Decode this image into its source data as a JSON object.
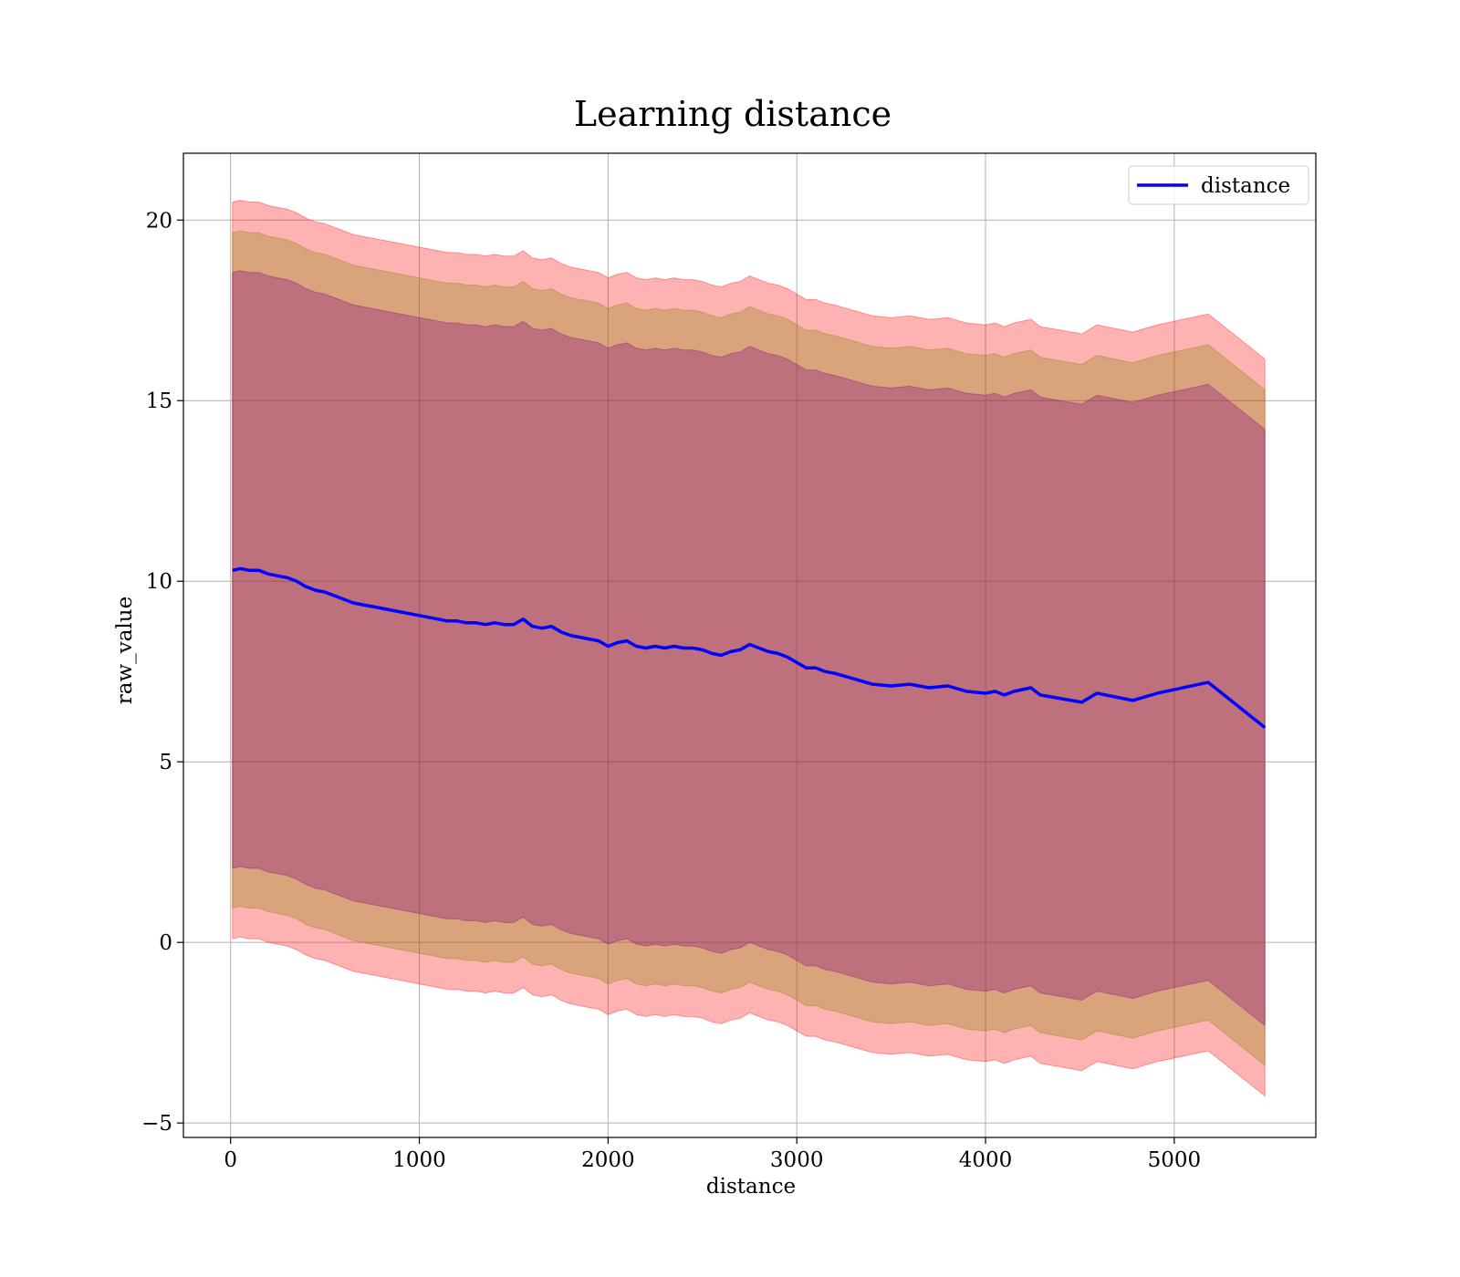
{
  "chart_data": {
    "type": "area",
    "title": "Learning distance",
    "xlabel": "distance",
    "ylabel": "raw_value",
    "xlim": [
      -250,
      5750
    ],
    "ylim": [
      -5.4,
      21.85
    ],
    "xticks": [
      0,
      1000,
      2000,
      3000,
      4000,
      5000
    ],
    "yticks": [
      -5,
      0,
      5,
      10,
      15,
      20
    ],
    "xtick_labels": [
      "0",
      "1000",
      "2000",
      "3000",
      "4000",
      "5000"
    ],
    "ytick_labels": [
      "−5",
      "0",
      "5",
      "10",
      "15",
      "20"
    ],
    "grid": true,
    "legend_position": "top-right",
    "series": [
      {
        "name": "distance",
        "kind": "line",
        "color": "#0000ff",
        "x": [
          10,
          50,
          100,
          150,
          200,
          250,
          300,
          350,
          400,
          450,
          500,
          550,
          600,
          650,
          700,
          750,
          800,
          850,
          900,
          950,
          1000,
          1050,
          1100,
          1150,
          1200,
          1250,
          1300,
          1350,
          1400,
          1450,
          1500,
          1550,
          1600,
          1650,
          1700,
          1750,
          1800,
          1850,
          1900,
          1950,
          2000,
          2050,
          2100,
          2150,
          2200,
          2250,
          2300,
          2350,
          2400,
          2450,
          2500,
          2550,
          2600,
          2650,
          2700,
          2750,
          2800,
          2850,
          2900,
          2950,
          3000,
          3050,
          3100,
          3150,
          3200,
          3300,
          3400,
          3500,
          3600,
          3700,
          3800,
          3900,
          4000,
          4050,
          4100,
          4150,
          4240,
          4290,
          4510,
          4590,
          4780,
          4910,
          5180,
          5480
        ],
        "y": [
          10.3,
          10.35,
          10.3,
          10.3,
          10.2,
          10.15,
          10.1,
          10.0,
          9.85,
          9.75,
          9.7,
          9.6,
          9.5,
          9.4,
          9.35,
          9.3,
          9.25,
          9.2,
          9.15,
          9.1,
          9.05,
          9.0,
          8.95,
          8.9,
          8.9,
          8.85,
          8.85,
          8.8,
          8.85,
          8.8,
          8.8,
          8.95,
          8.75,
          8.7,
          8.75,
          8.6,
          8.5,
          8.45,
          8.4,
          8.35,
          8.2,
          8.3,
          8.35,
          8.2,
          8.15,
          8.2,
          8.15,
          8.2,
          8.15,
          8.15,
          8.1,
          8.0,
          7.95,
          8.05,
          8.1,
          8.25,
          8.15,
          8.05,
          8.0,
          7.9,
          7.75,
          7.6,
          7.6,
          7.5,
          7.45,
          7.3,
          7.15,
          7.1,
          7.15,
          7.05,
          7.1,
          6.95,
          6.9,
          6.95,
          6.85,
          6.95,
          7.05,
          6.85,
          6.65,
          6.9,
          6.7,
          6.9,
          7.2,
          5.95
        ]
      },
      {
        "name": "",
        "kind": "band",
        "color": "#ff0000",
        "band_offset": 10.2
      },
      {
        "name": "",
        "kind": "band",
        "color": "#808000",
        "band_offset": 9.35
      },
      {
        "name": "",
        "kind": "band",
        "color": "#800080",
        "band_offset": 8.25
      }
    ]
  }
}
